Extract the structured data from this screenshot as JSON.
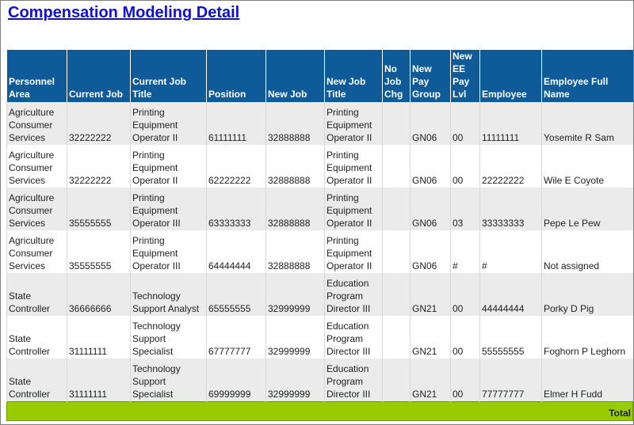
{
  "header": {
    "title": "Compensation Modeling Detail"
  },
  "table": {
    "columns": [
      "Personnel Area",
      "Current Job",
      "Current Job Title",
      "Position",
      "New Job",
      "New Job Title",
      "No Job Chg",
      "New Pay Group",
      "New EE Pay Lvl",
      "Employee",
      "Employee Full Name"
    ],
    "rows": [
      [
        "Agriculture Consumer Services",
        "32222222",
        "Printing Equipment Operator II",
        "61111111",
        "32888888",
        "Printing Equipment Operator II",
        null,
        "GN06",
        "00",
        "11111111",
        "Yosemite R Sam"
      ],
      [
        "Agriculture Consumer Services",
        "32222222",
        "Printing Equipment Operator II",
        "62222222",
        "32888888",
        "Printing Equipment Operator II",
        null,
        "GN06",
        "00",
        "22222222",
        "Wile E Coyote"
      ],
      [
        "Agriculture Consumer Services",
        "35555555",
        "Printing Equipment Operator III",
        "63333333",
        "32888888",
        "Printing Equipment Operator II",
        null,
        "GN06",
        "03",
        "33333333",
        "Pepe Le Pew"
      ],
      [
        "Agriculture Consumer Services",
        "35555555",
        "Printing Equipment Operator III",
        "64444444",
        "32888888",
        "Printing Equipment Operator II",
        null,
        "GN06",
        "#",
        "#",
        "Not assigned"
      ],
      [
        "State Controller",
        "36666666",
        "Technology Support Analyst",
        "65555555",
        "32999999",
        "Education Program Director III",
        null,
        "GN21",
        "00",
        "44444444",
        "Porky D Pig"
      ],
      [
        "State Controller",
        "31111111",
        "Technology Support Specialist",
        "67777777",
        "32999999",
        "Education Program Director III",
        null,
        "GN21",
        "00",
        "55555555",
        "Foghorn P Leghorn"
      ],
      [
        "State Controller",
        "31111111",
        "Technology Support Specialist",
        "69999999",
        "32999999",
        "Education Program Director III",
        null,
        "GN21",
        "00",
        "77777777",
        "Elmer H Fudd"
      ]
    ],
    "total_label": "Total"
  }
}
